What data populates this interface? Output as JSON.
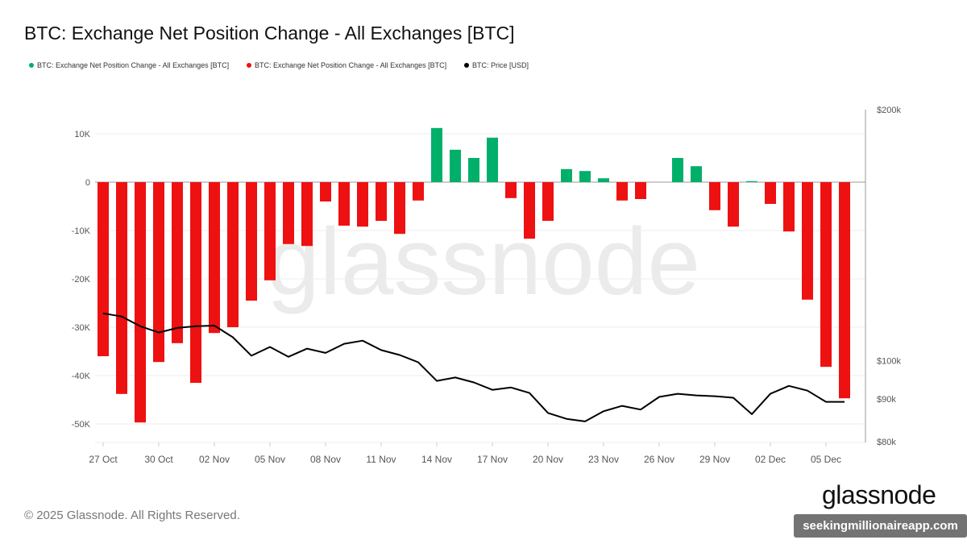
{
  "title": "BTC: Exchange Net Position Change - All Exchanges [BTC]",
  "legend": [
    {
      "label": "BTC: Exchange Net Position Change - All Exchanges [BTC]",
      "color": "#00b06a"
    },
    {
      "label": "BTC: Exchange Net Position Change - All Exchanges [BTC]",
      "color": "#ee1111"
    },
    {
      "label": "BTC: Price [USD]",
      "color": "#000000"
    }
  ],
  "footer": "© 2025 Glassnode. All Rights Reserved.",
  "logo": "glassnode",
  "watermark": "glassnode",
  "credit": "seekingmillionaireapp.com",
  "chart_data": {
    "type": "bar",
    "title": "BTC: Exchange Net Position Change - All Exchanges [BTC]",
    "x": [
      "27 Oct",
      "28 Oct",
      "29 Oct",
      "30 Oct",
      "31 Oct",
      "01 Nov",
      "02 Nov",
      "03 Nov",
      "04 Nov",
      "05 Nov",
      "06 Nov",
      "07 Nov",
      "08 Nov",
      "09 Nov",
      "10 Nov",
      "11 Nov",
      "12 Nov",
      "13 Nov",
      "14 Nov",
      "15 Nov",
      "16 Nov",
      "17 Nov",
      "18 Nov",
      "19 Nov",
      "20 Nov",
      "21 Nov",
      "22 Nov",
      "23 Nov",
      "24 Nov",
      "25 Nov",
      "26 Nov",
      "27 Nov",
      "28 Nov",
      "29 Nov",
      "30 Nov",
      "01 Dec",
      "02 Dec",
      "03 Dec",
      "04 Dec",
      "05 Dec",
      "06 Dec"
    ],
    "x_tick_labels": [
      "27 Oct",
      "30 Oct",
      "02 Nov",
      "05 Nov",
      "08 Nov",
      "11 Nov",
      "14 Nov",
      "17 Nov",
      "20 Nov",
      "23 Nov",
      "26 Nov",
      "29 Nov",
      "02 Dec",
      "05 Dec"
    ],
    "series": [
      {
        "name": "BTC: Exchange Net Position Change - All Exchanges [BTC]",
        "type": "bar",
        "axis": "left",
        "positive_color": "#00b06a",
        "negative_color": "#ee1111",
        "values": [
          -36000,
          -43800,
          -49700,
          -37200,
          -33300,
          -41500,
          -31200,
          -30000,
          -24500,
          -20300,
          -12800,
          -13200,
          -4000,
          -9000,
          -9200,
          -8000,
          -10700,
          -3800,
          11200,
          6700,
          5000,
          9200,
          -3300,
          -11700,
          -8000,
          2700,
          2300,
          800,
          -3800,
          -3500,
          0,
          5000,
          3300,
          -5800,
          -9200,
          200,
          -4500,
          -10200,
          -24300,
          -38200,
          -44700
        ]
      },
      {
        "name": "BTC: Price [USD]",
        "type": "line",
        "axis": "right",
        "color": "#000000",
        "values": [
          114000,
          113000,
          110000,
          108100,
          109500,
          110000,
          110200,
          106700,
          101400,
          103900,
          101100,
          103400,
          102200,
          104800,
          105700,
          103000,
          101600,
          99600,
          94600,
          95500,
          94200,
          92300,
          92900,
          91500,
          86600,
          85200,
          84600,
          87000,
          88300,
          87400,
          90500,
          91300,
          90900,
          90700,
          90300,
          86300,
          91300,
          93300,
          92100,
          89300,
          89300
        ]
      }
    ],
    "y_left": {
      "ticks": [
        10000,
        0,
        -10000,
        -20000,
        -30000,
        -40000,
        -50000
      ],
      "tick_labels": [
        "10K",
        "0",
        "-10K",
        "-20K",
        "-30K",
        "-40K",
        "-50K"
      ]
    },
    "y_right": {
      "scale": "log",
      "range": [
        80000,
        200000
      ],
      "ticks": [
        200000,
        100000,
        90000,
        80000
      ],
      "tick_labels": [
        "$200k",
        "$100k",
        "$90k",
        "$80k"
      ]
    },
    "grid": true,
    "legend_position": "top-left"
  }
}
